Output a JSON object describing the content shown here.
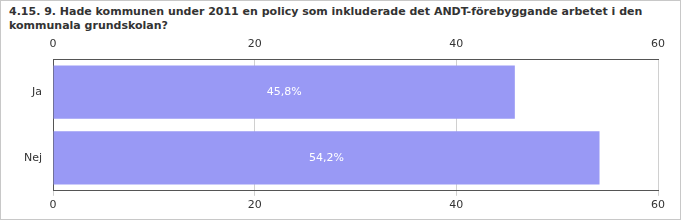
{
  "chart_data": {
    "type": "bar",
    "title": "4.15. 9. Hade kommunen under 2011 en policy som inkluderade det ANDT-förebyggande arbetet i den kommunala grundskolan?",
    "categories": [
      "Ja",
      "Nej"
    ],
    "values": [
      45.8,
      54.2
    ],
    "value_labels": [
      "45,8%",
      "54,2%"
    ],
    "color": "#9999f5",
    "orientation": "horizontal",
    "data_labels": true,
    "grid": true,
    "xlim": [
      0,
      60
    ],
    "xticks": [
      0,
      20,
      40,
      60
    ]
  }
}
